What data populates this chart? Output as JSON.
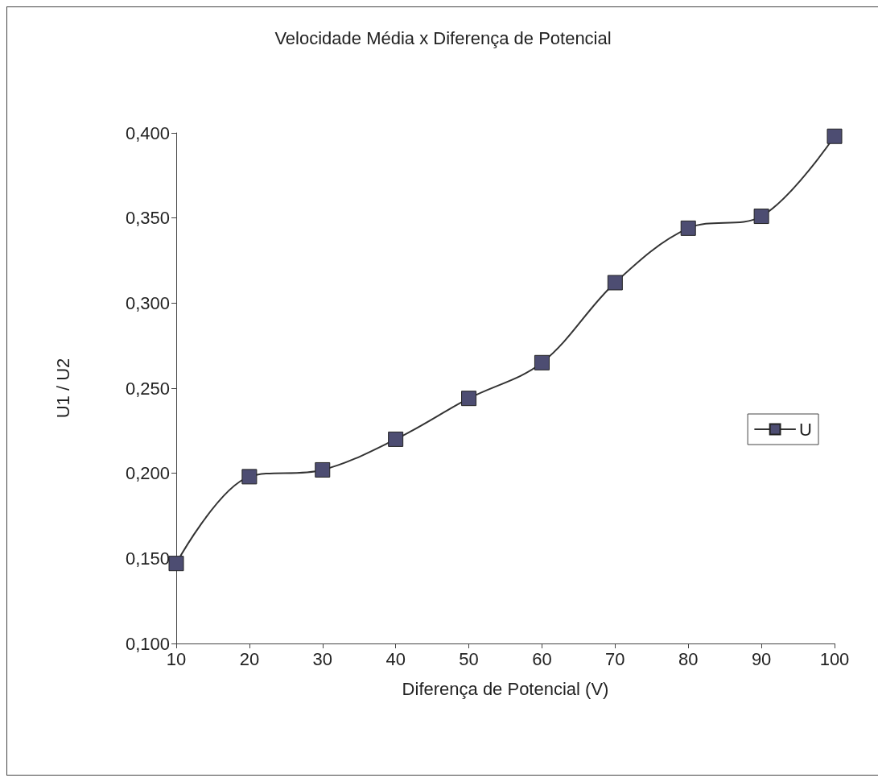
{
  "chart_data": {
    "type": "line",
    "title": "Velocidade Média x Diferença de Potencial",
    "xlabel": "Diferença de Potencial (V)",
    "ylabel": "U1 / U2",
    "x": [
      10,
      20,
      30,
      40,
      50,
      60,
      70,
      80,
      90,
      100
    ],
    "series": [
      {
        "name": "U",
        "color": "#4d4d72",
        "values": [
          0.147,
          0.198,
          0.202,
          0.22,
          0.244,
          0.265,
          0.312,
          0.344,
          0.351,
          0.398
        ]
      }
    ],
    "xlim": [
      10,
      100
    ],
    "xticks": [
      10,
      20,
      30,
      40,
      50,
      60,
      70,
      80,
      90,
      100
    ],
    "ylim": [
      0.1,
      0.4
    ],
    "yticks": [
      {
        "value": 0.1,
        "label": "0,100"
      },
      {
        "value": 0.15,
        "label": "0,150"
      },
      {
        "value": 0.2,
        "label": "0,200"
      },
      {
        "value": 0.25,
        "label": "0,250"
      },
      {
        "value": 0.3,
        "label": "0,300"
      },
      {
        "value": 0.35,
        "label": "0,350"
      },
      {
        "value": 0.4,
        "label": "0,400"
      }
    ],
    "grid": false,
    "legend": "right",
    "marker": "square",
    "line_style": "solid"
  }
}
